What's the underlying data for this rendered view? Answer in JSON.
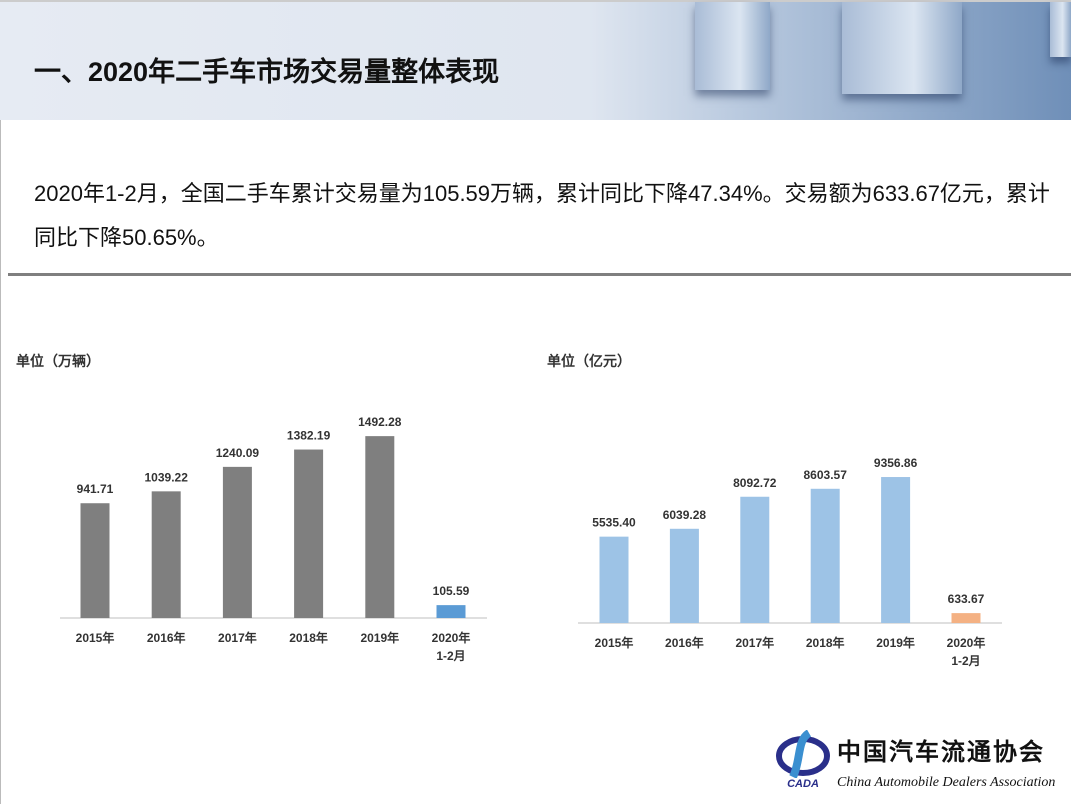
{
  "header": {
    "title": "一、2020年二手车市场交易量整体表现"
  },
  "lead": "2020年1-2月，全国二手车累计交易量为105.59万辆，累计同比下降47.34%。交易额为633.67亿元，累计同比下降50.65%。",
  "logo": {
    "abbr": "CADA",
    "name_cn": "中国汽车流通协会",
    "name_en": "China Automobile Dealers Association"
  },
  "chart_data": [
    {
      "type": "bar",
      "unit_label": "单位（万辆）",
      "categories": [
        "2015年",
        "2016年",
        "2017年",
        "2018年",
        "2019年",
        "2020年\n1-2月"
      ],
      "values": [
        941.71,
        1039.22,
        1240.09,
        1382.19,
        1492.28,
        105.59
      ],
      "value_labels": [
        "941.71",
        "1039.22",
        "1240.09",
        "1382.19",
        "1492.28",
        "105.59"
      ],
      "colors": [
        "#7f7f7f",
        "#7f7f7f",
        "#7f7f7f",
        "#7f7f7f",
        "#7f7f7f",
        "#5b9bd5"
      ],
      "ylim": [
        0,
        1600
      ],
      "grid": false
    },
    {
      "type": "bar",
      "unit_label": "单位（亿元）",
      "categories": [
        "2015年",
        "2016年",
        "2017年",
        "2018年",
        "2019年",
        "2020年\n1-2月"
      ],
      "values": [
        5535.4,
        6039.28,
        8092.72,
        8603.57,
        9356.86,
        633.67
      ],
      "value_labels": [
        "5535.40",
        "6039.28",
        "8092.72",
        "8603.57",
        "9356.86",
        "633.67"
      ],
      "colors": [
        "#9dc3e6",
        "#9dc3e6",
        "#9dc3e6",
        "#9dc3e6",
        "#9dc3e6",
        "#f4b183"
      ],
      "ylim": [
        0,
        10000
      ],
      "grid": false
    }
  ]
}
